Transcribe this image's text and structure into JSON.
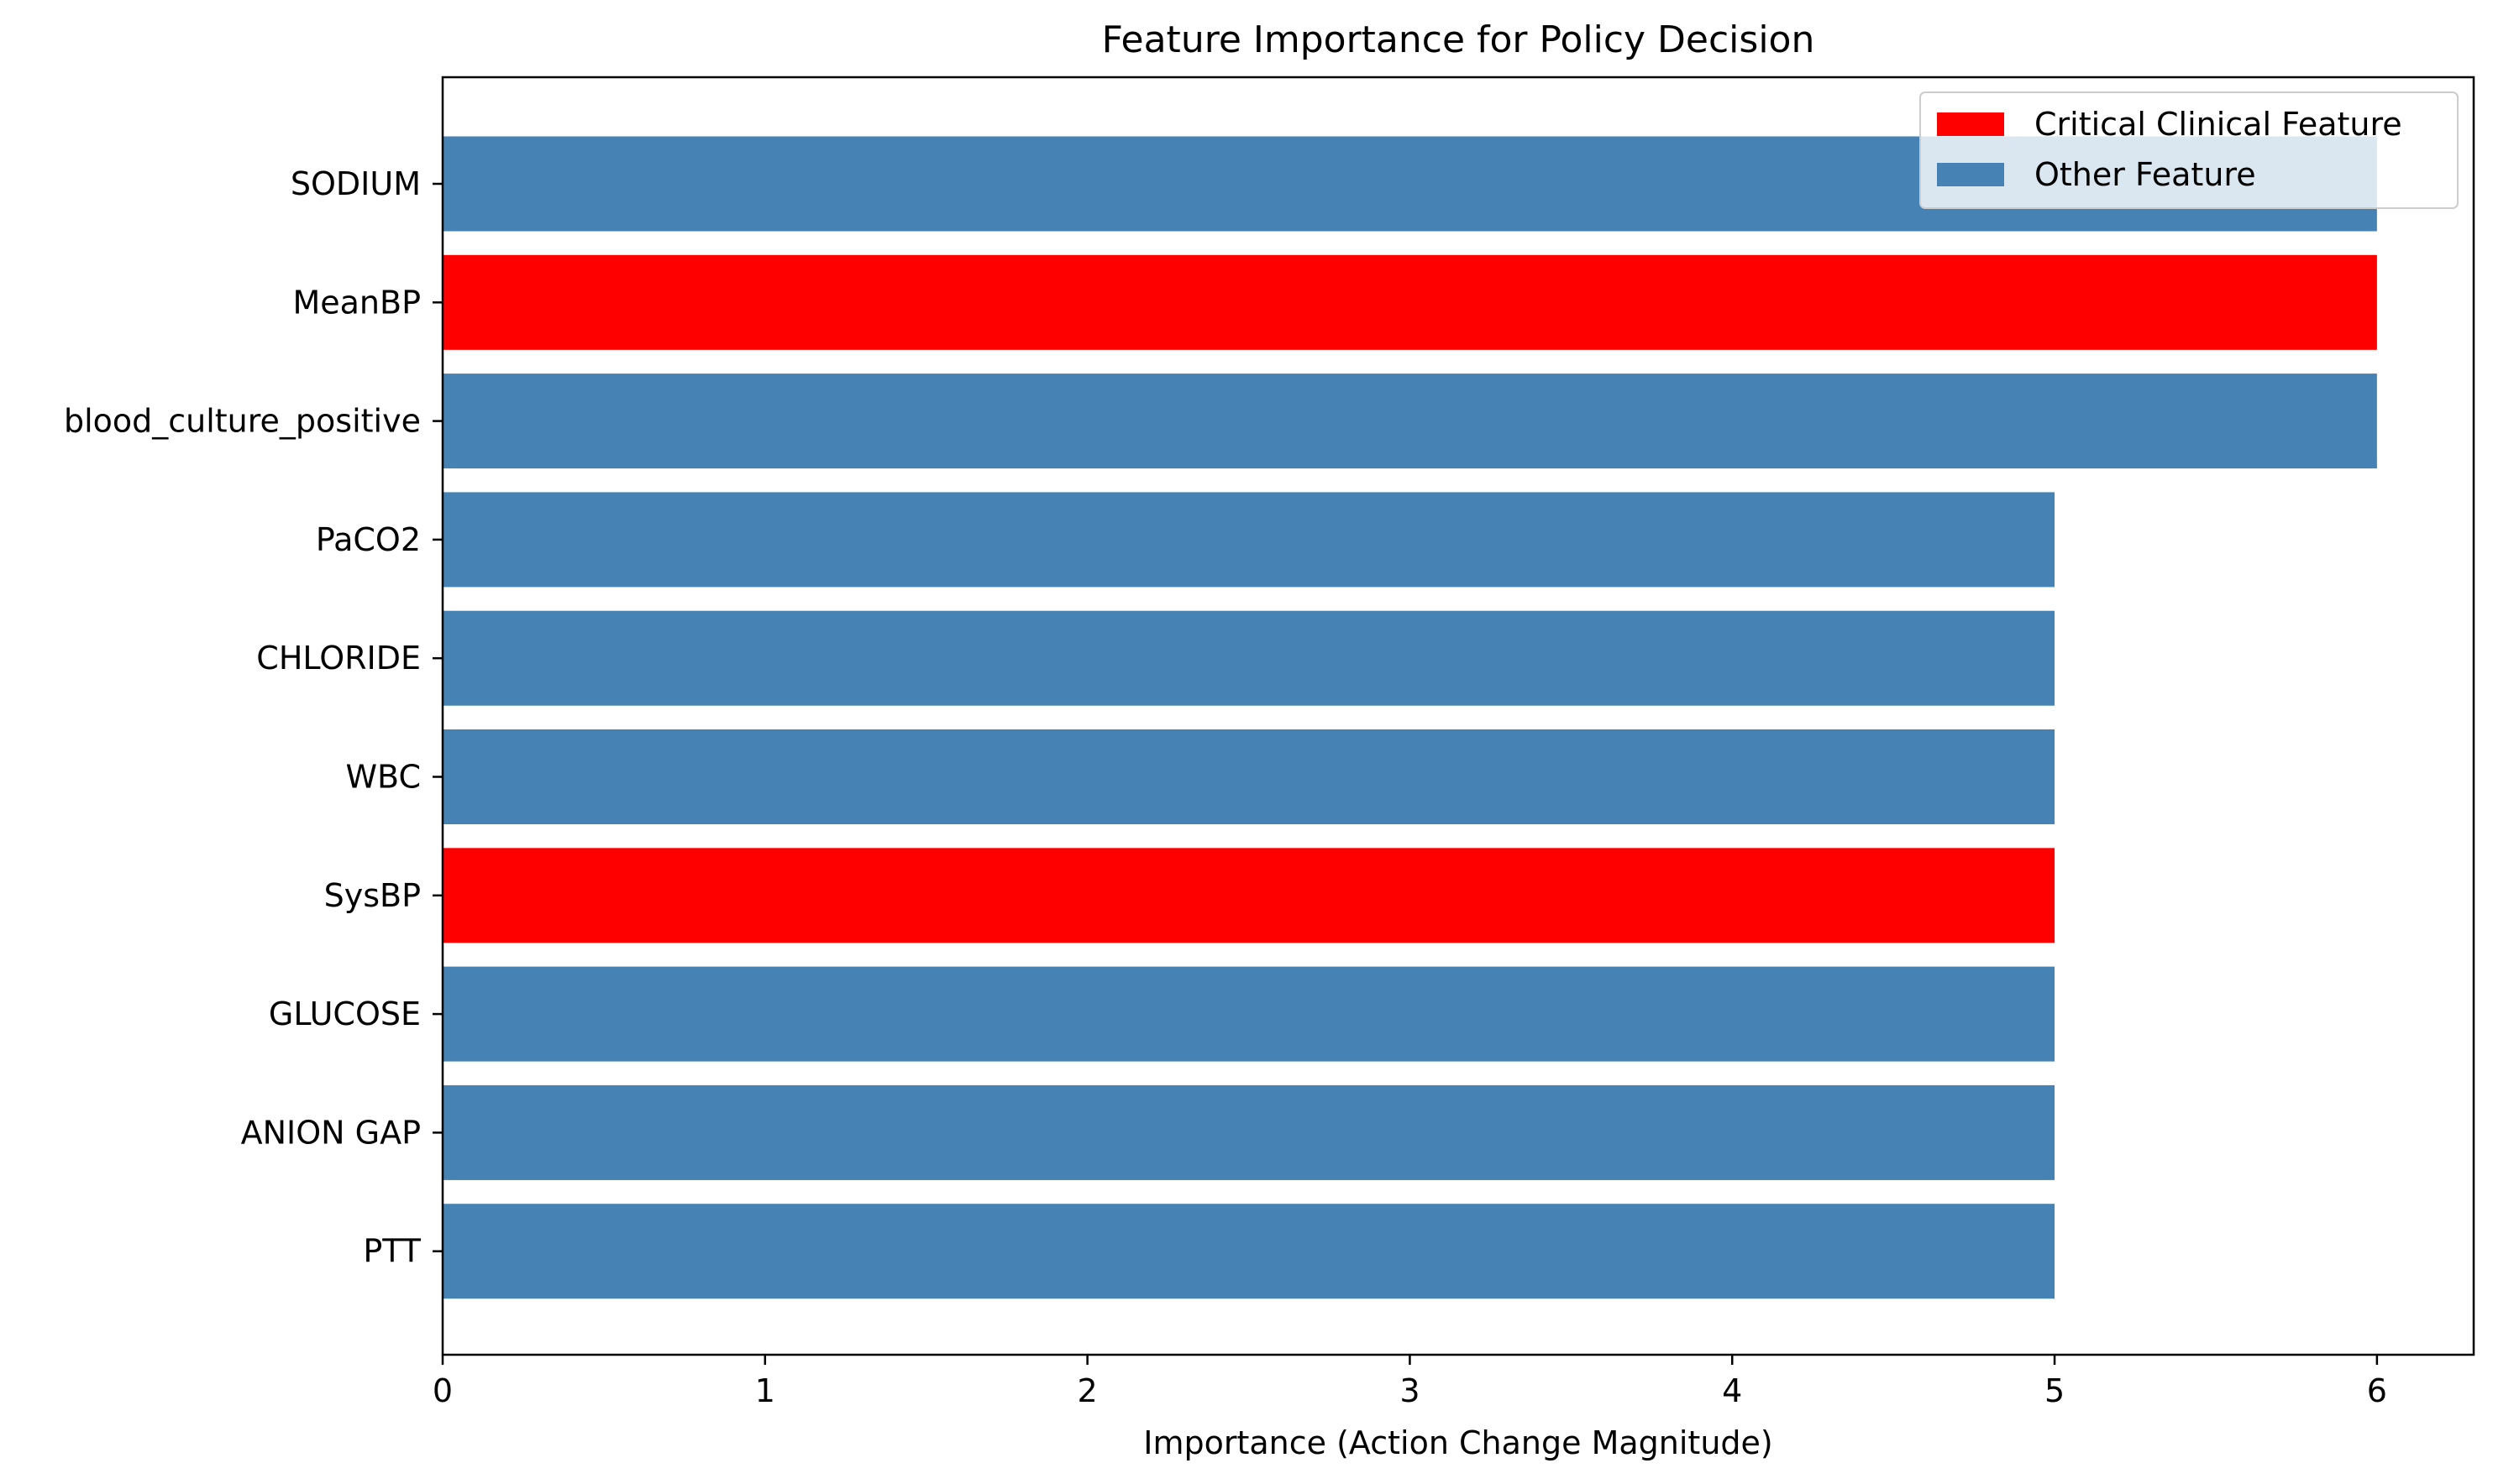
{
  "chart_data": {
    "type": "bar",
    "orientation": "horizontal",
    "title": "Feature Importance for Policy Decision",
    "xlabel": "Importance (Action Change Magnitude)",
    "ylabel": "",
    "xlim": [
      0,
      6.3
    ],
    "xticks": [
      "0",
      "1",
      "2",
      "3",
      "4",
      "5",
      "6"
    ],
    "grid": false,
    "legend_position": "top-right",
    "legend": [
      {
        "label": "Critical Clinical Feature",
        "color": "#ff0000"
      },
      {
        "label": "Other Feature",
        "color": "#4682b4"
      }
    ],
    "categories": [
      "SODIUM",
      "MeanBP",
      "blood_culture_positive",
      "PaCO2",
      "CHLORIDE",
      "WBC",
      "SysBP",
      "GLUCOSE",
      "ANION GAP",
      "PTT"
    ],
    "values": [
      6,
      6,
      6,
      5,
      5,
      5,
      5,
      5,
      5,
      5
    ],
    "critical": [
      false,
      true,
      false,
      false,
      false,
      false,
      true,
      false,
      false,
      false
    ],
    "colors": {
      "critical": "#ff0000",
      "other": "#4682b4"
    }
  }
}
